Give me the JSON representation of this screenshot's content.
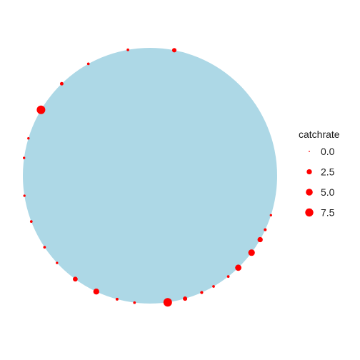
{
  "chart_data": {
    "type": "scatter",
    "coordinate_system": "polar",
    "background_shape": "circle",
    "background_color": "#add8e6",
    "point_color": "#ff0000",
    "grid": false,
    "axes_visible": false,
    "legend": {
      "title": "catchrate",
      "placement": "right",
      "entries": [
        {
          "label": "0.0",
          "value": 0.0
        },
        {
          "label": "2.5",
          "value": 2.5
        },
        {
          "label": "5.0",
          "value": 5.0
        },
        {
          "label": "7.5",
          "value": 7.5
        }
      ]
    },
    "size_range": [
      0,
      8.5
    ],
    "points": [
      {
        "angle_deg": 11,
        "catchrate": 1.5
      },
      {
        "angle_deg": 350,
        "catchrate": 0.3
      },
      {
        "angle_deg": 331,
        "catchrate": 0.3
      },
      {
        "angle_deg": 316,
        "catchrate": 0.8
      },
      {
        "angle_deg": 301,
        "catchrate": 8.5
      },
      {
        "angle_deg": 287,
        "catchrate": 0.2
      },
      {
        "angle_deg": 278,
        "catchrate": 0.2
      },
      {
        "angle_deg": 261,
        "catchrate": 0.2
      },
      {
        "angle_deg": 249,
        "catchrate": 0.3
      },
      {
        "angle_deg": 236,
        "catchrate": 0.3
      },
      {
        "angle_deg": 227,
        "catchrate": 0.2
      },
      {
        "angle_deg": 216,
        "catchrate": 2.0
      },
      {
        "angle_deg": 205,
        "catchrate": 3.5
      },
      {
        "angle_deg": 195,
        "catchrate": 0.4
      },
      {
        "angle_deg": 187,
        "catchrate": 0.3
      },
      {
        "angle_deg": 172,
        "catchrate": 8.5
      },
      {
        "angle_deg": 164,
        "catchrate": 1.5
      },
      {
        "angle_deg": 156,
        "catchrate": 0.5
      },
      {
        "angle_deg": 150,
        "catchrate": 0.3
      },
      {
        "angle_deg": 142,
        "catchrate": 0.3
      },
      {
        "angle_deg": 136,
        "catchrate": 4.0
      },
      {
        "angle_deg": 127,
        "catchrate": 4.5
      },
      {
        "angle_deg": 120,
        "catchrate": 2.5
      },
      {
        "angle_deg": 115,
        "catchrate": 0.4
      },
      {
        "angle_deg": 108,
        "catchrate": 0.2
      }
    ]
  }
}
